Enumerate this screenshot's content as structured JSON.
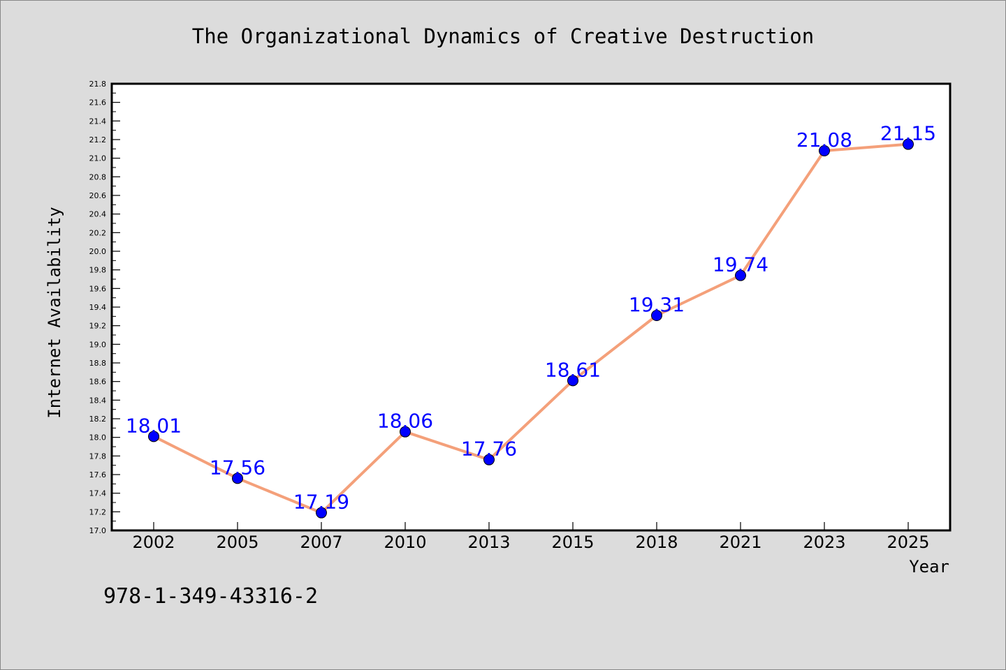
{
  "chart_data": {
    "type": "line",
    "title": "The Organizational Dynamics of Creative Destruction",
    "xlabel": "Year",
    "ylabel": "Internet Availability",
    "categories": [
      "2002",
      "2005",
      "2007",
      "2010",
      "2013",
      "2015",
      "2018",
      "2021",
      "2023",
      "2025"
    ],
    "series": [
      {
        "values": [
          18.01,
          17.56,
          17.19,
          18.06,
          17.76,
          18.61,
          19.31,
          19.74,
          21.08,
          21.15
        ],
        "labels": [
          "18.01",
          "17.56",
          "17.19",
          "18.06",
          "17.76",
          "18.61",
          "19.31",
          "19.74",
          "21.08",
          "21.15"
        ]
      }
    ],
    "ylim": [
      17.0,
      21.8
    ],
    "yticks": [
      "17.0",
      "17.2",
      "17.4",
      "17.6",
      "17.8",
      "18.0",
      "18.2",
      "18.4",
      "18.6",
      "18.8",
      "19.0",
      "19.2",
      "19.4",
      "19.6",
      "19.8",
      "20.0",
      "20.2",
      "20.4",
      "20.6",
      "20.8",
      "21.0",
      "21.2",
      "21.4",
      "21.6",
      "21.8"
    ],
    "grid": false,
    "legend": "none",
    "colors": {
      "line": "#f4a07a",
      "marker": "#0000ff",
      "label": "#0000ff",
      "plot_background": "#ffffff",
      "figure_background": "#dcdcdc"
    }
  },
  "footer": {
    "isbn": "978-1-349-43316-2"
  }
}
